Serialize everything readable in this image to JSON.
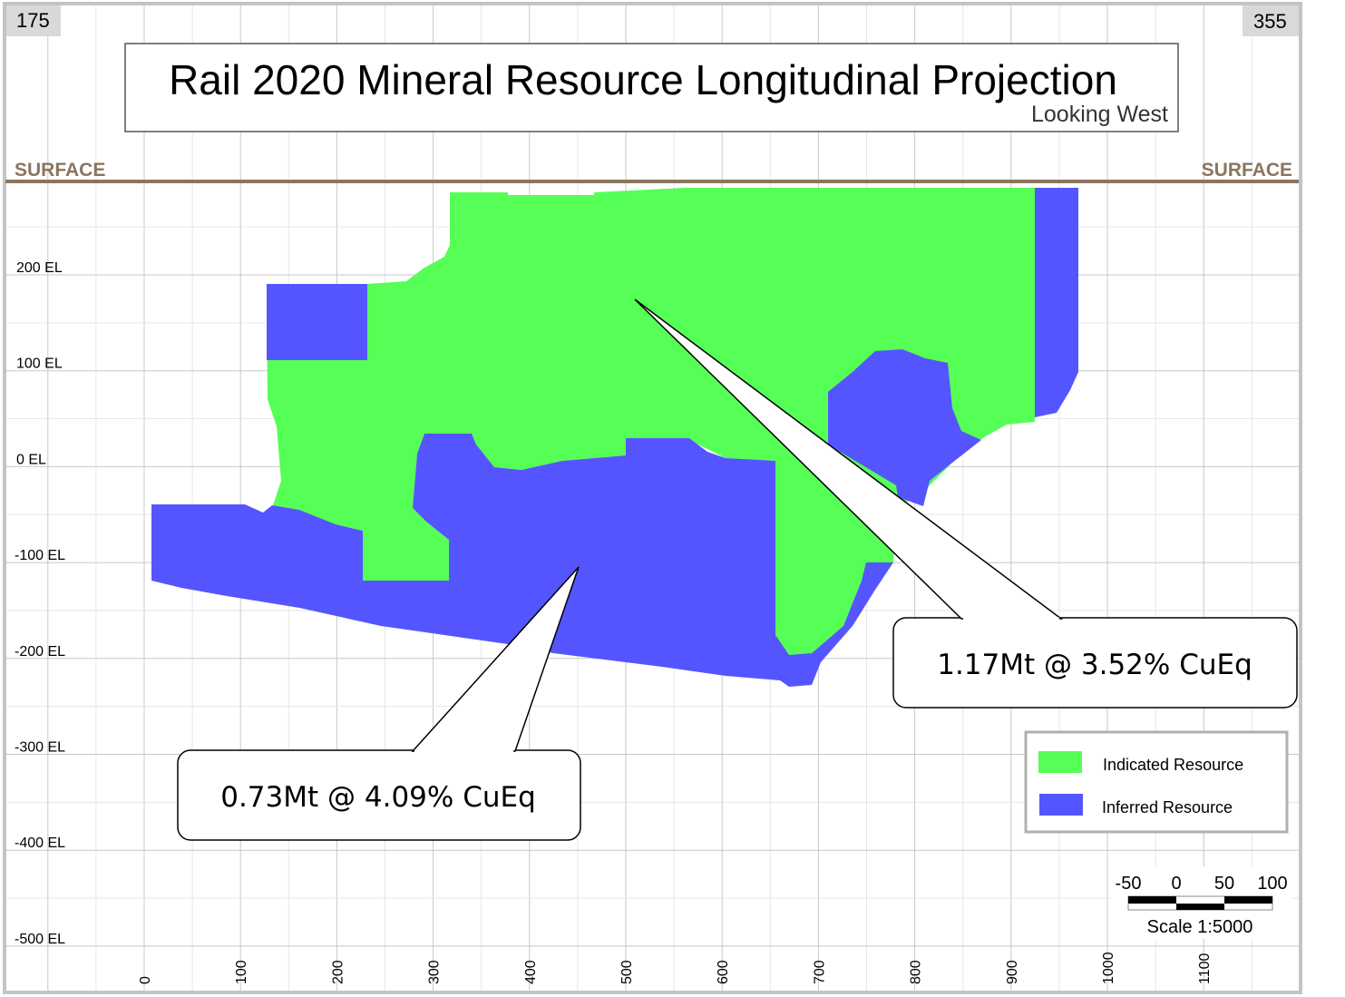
{
  "corner_labels": {
    "left": "175",
    "right": "355"
  },
  "title": "Rail 2020 Mineral Resource Longitudinal Projection",
  "subtitle": "Looking West",
  "surface_label_left": "SURFACE",
  "surface_label_right": "SURFACE",
  "elevation_labels": [
    "200 EL",
    "100 EL",
    "0 EL",
    "-100 EL",
    "-200 EL",
    "-300 EL",
    "-400 EL",
    "-500 EL"
  ],
  "x_ticks": [
    "0",
    "100",
    "200",
    "300",
    "400",
    "500",
    "600",
    "700",
    "800",
    "900",
    "1000",
    "1100"
  ],
  "callouts": [
    {
      "text": "1.17Mt @ 3.52% CuEq"
    },
    {
      "text": "0.73Mt @ 4.09% CuEq"
    }
  ],
  "legend": [
    {
      "label": "Indicated Resource",
      "color": "#55ff55"
    },
    {
      "label": "Inferred Resource",
      "color": "#5555ff"
    }
  ],
  "scale_bar": {
    "ticks": [
      "-50",
      "0",
      "50",
      "100"
    ],
    "label": "Scale 1:5000"
  },
  "colors": {
    "surface": "#8b7560",
    "indicated": "#55ff55",
    "inferred": "#5555ff"
  }
}
